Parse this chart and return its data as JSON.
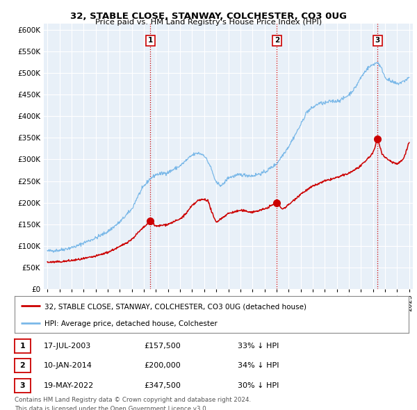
{
  "title": "32, STABLE CLOSE, STANWAY, COLCHESTER, CO3 0UG",
  "subtitle": "Price paid vs. HM Land Registry's House Price Index (HPI)",
  "hpi_color": "#7ab8e8",
  "price_color": "#cc0000",
  "background_color": "#e8f0f8",
  "yticks": [
    0,
    50000,
    100000,
    150000,
    200000,
    250000,
    300000,
    350000,
    400000,
    450000,
    500000,
    550000,
    600000
  ],
  "ylim": [
    0,
    615000
  ],
  "xlim_start": 1994.7,
  "xlim_end": 2025.3,
  "transactions": [
    {
      "label": "1",
      "date_num": 2003.54,
      "price": 157500
    },
    {
      "label": "2",
      "date_num": 2014.03,
      "price": 200000
    },
    {
      "label": "3",
      "date_num": 2022.38,
      "price": 347500
    }
  ],
  "legend_entries": [
    {
      "label": "32, STABLE CLOSE, STANWAY, COLCHESTER, CO3 0UG (detached house)",
      "color": "#cc0000"
    },
    {
      "label": "HPI: Average price, detached house, Colchester",
      "color": "#7ab8e8"
    }
  ],
  "table_rows": [
    {
      "num": "1",
      "date": "17-JUL-2003",
      "price": "£157,500",
      "pct": "33% ↓ HPI"
    },
    {
      "num": "2",
      "date": "10-JAN-2014",
      "price": "£200,000",
      "pct": "34% ↓ HPI"
    },
    {
      "num": "3",
      "date": "19-MAY-2022",
      "price": "£347,500",
      "pct": "30% ↓ HPI"
    }
  ],
  "footnote1": "Contains HM Land Registry data © Crown copyright and database right 2024.",
  "footnote2": "This data is licensed under the Open Government Licence v3.0.",
  "hpi_anchors_x": [
    1995.0,
    1996.0,
    1997.0,
    1997.5,
    1998.0,
    1999.0,
    2000.0,
    2001.0,
    2002.0,
    2002.5,
    2003.0,
    2003.5,
    2004.0,
    2005.0,
    2006.0,
    2007.0,
    2007.5,
    2008.0,
    2008.5,
    2009.0,
    2009.5,
    2010.0,
    2011.0,
    2012.0,
    2013.0,
    2014.0,
    2015.0,
    2015.5,
    2016.0,
    2016.5,
    2017.0,
    2017.5,
    2018.0,
    2018.5,
    2019.0,
    2019.5,
    2020.0,
    2020.5,
    2021.0,
    2021.5,
    2022.0,
    2022.4,
    2022.8,
    2023.0,
    2023.5,
    2024.0,
    2024.5,
    2025.0
  ],
  "hpi_anchors_y": [
    88000,
    90000,
    96000,
    100000,
    107000,
    118000,
    133000,
    155000,
    185000,
    215000,
    238000,
    255000,
    265000,
    270000,
    285000,
    310000,
    315000,
    310000,
    285000,
    245000,
    240000,
    258000,
    265000,
    262000,
    270000,
    290000,
    330000,
    355000,
    380000,
    410000,
    420000,
    430000,
    430000,
    435000,
    435000,
    440000,
    450000,
    465000,
    490000,
    510000,
    520000,
    525000,
    505000,
    490000,
    480000,
    475000,
    480000,
    490000
  ],
  "price_anchors_x": [
    1995.0,
    1996.0,
    1997.0,
    1998.0,
    1999.0,
    2000.0,
    2001.0,
    2002.0,
    2002.5,
    2003.0,
    2003.54,
    2004.0,
    2005.0,
    2006.0,
    2006.5,
    2007.0,
    2007.5,
    2008.0,
    2008.3,
    2008.8,
    2009.0,
    2009.5,
    2010.0,
    2011.0,
    2012.0,
    2013.0,
    2014.03,
    2014.5,
    2015.0,
    2016.0,
    2017.0,
    2018.0,
    2019.0,
    2020.0,
    2021.0,
    2022.0,
    2022.38,
    2022.8,
    2023.0,
    2023.5,
    2024.0,
    2024.5,
    2025.0
  ],
  "price_anchors_y": [
    62000,
    63000,
    66000,
    70000,
    76000,
    85000,
    98000,
    115000,
    130000,
    143000,
    157500,
    145000,
    150000,
    162000,
    175000,
    193000,
    205000,
    208000,
    205000,
    165000,
    155000,
    165000,
    175000,
    182000,
    178000,
    185000,
    200000,
    185000,
    195000,
    220000,
    238000,
    250000,
    258000,
    268000,
    285000,
    315000,
    347500,
    310000,
    305000,
    295000,
    290000,
    300000,
    340000
  ]
}
